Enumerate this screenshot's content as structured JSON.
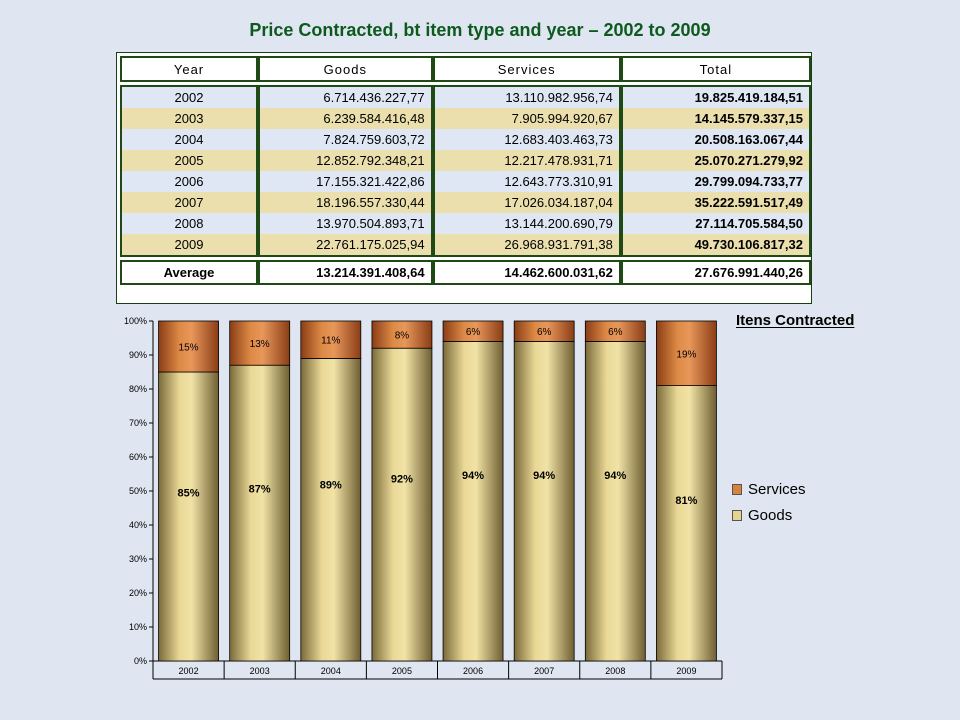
{
  "title": "Price Contracted, bt item type and year – 2002 to 2009",
  "table": {
    "headers": [
      "Year",
      "Goods",
      "Services",
      "Total"
    ],
    "rows": [
      [
        "2002",
        "6.714.436.227,77",
        "13.110.982.956,74",
        "19.825.419.184,51"
      ],
      [
        "2003",
        "6.239.584.416,48",
        "7.905.994.920,67",
        "14.145.579.337,15"
      ],
      [
        "2004",
        "7.824.759.603,72",
        "12.683.403.463,73",
        "20.508.163.067,44"
      ],
      [
        "2005",
        "12.852.792.348,21",
        "12.217.478.931,71",
        "25.070.271.279,92"
      ],
      [
        "2006",
        "17.155.321.422,86",
        "12.643.773.310,91",
        "29.799.094.733,77"
      ],
      [
        "2007",
        "18.196.557.330,44",
        "17.026.034.187,04",
        "35.222.591.517,49"
      ],
      [
        "2008",
        "13.970.504.893,71",
        "13.144.200.690,79",
        "27.114.705.584,50"
      ],
      [
        "2009",
        "22.761.175.025,94",
        "26.968.931.791,38",
        "49.730.106.817,32"
      ]
    ],
    "average": [
      "Average",
      "13.214.391.408,64",
      "14.462.600.031,62",
      "27.676.991.440,26"
    ]
  },
  "chart_data": {
    "type": "bar",
    "stacked": true,
    "title": "Itens Contracted",
    "categories": [
      "2002",
      "2003",
      "2004",
      "2005",
      "2006",
      "2007",
      "2008",
      "2009"
    ],
    "series": [
      {
        "name": "Goods",
        "values": [
          85,
          87,
          89,
          92,
          94,
          94,
          94,
          81
        ],
        "labels": [
          "85%",
          "87%",
          "89%",
          "92%",
          "94%",
          "94%",
          "94%",
          "81%"
        ],
        "color": "#e6d48e"
      },
      {
        "name": "Services",
        "values": [
          15,
          13,
          11,
          8,
          6,
          6,
          6,
          19
        ],
        "labels": [
          "15%",
          "13%",
          "11%",
          "8%",
          "6%",
          "6%",
          "6%",
          "19%"
        ],
        "color": "#d9823d"
      }
    ],
    "ylim": [
      0,
      100
    ],
    "yticks": [
      "0%",
      "10%",
      "20%",
      "30%",
      "40%",
      "50%",
      "60%",
      "70%",
      "80%",
      "90%",
      "100%"
    ],
    "legend_position": "right",
    "grid": false
  }
}
